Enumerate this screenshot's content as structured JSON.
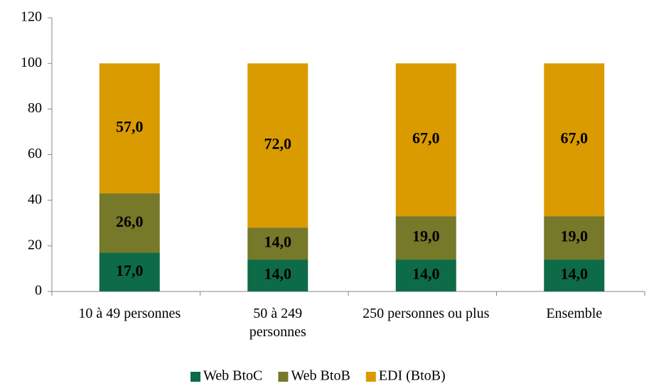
{
  "chart_data": {
    "type": "stacked_bar",
    "categories": [
      "10 à 49 personnes",
      "50 à 249 personnes",
      "250 personnes ou plus",
      "Ensemble"
    ],
    "series": [
      {
        "name": "Web BtoC",
        "color": "#0e6b47",
        "values": [
          17,
          14,
          14,
          14
        ],
        "value_labels": [
          "17,0",
          "14,0",
          "14,0",
          "14,0"
        ]
      },
      {
        "name": "Web BtoB",
        "color": "#76782a",
        "values": [
          26,
          14,
          19,
          19
        ],
        "value_labels": [
          "26,0",
          "14,0",
          "19,0",
          "19,0"
        ]
      },
      {
        "name": "EDI (BtoB)",
        "color": "#d99b00",
        "values": [
          57,
          72,
          67,
          67
        ],
        "value_labels": [
          "57,0",
          "72,0",
          "67,0",
          "67,0"
        ]
      }
    ],
    "ylim": [
      0,
      120
    ],
    "yticks": [
      0,
      20,
      40,
      60,
      80,
      100,
      120
    ],
    "grid": false,
    "legend": "bottom"
  }
}
